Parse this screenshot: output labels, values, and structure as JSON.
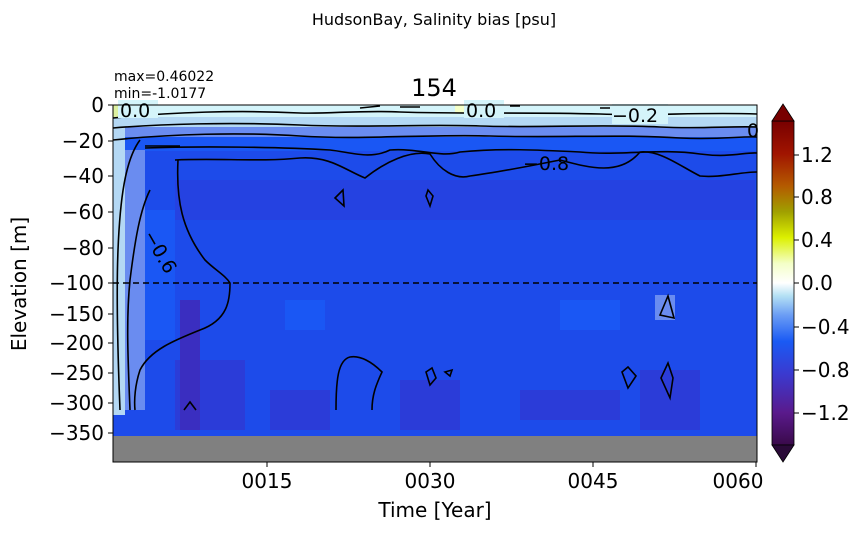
{
  "figure": {
    "suptitle": "HudsonBay, Salinity bias [psu]",
    "title": "154",
    "stat_max": "max=0.46022",
    "stat_min": "min=-1.0177"
  },
  "chart_data": {
    "type": "heatmap",
    "title": "154",
    "xlabel": "Time [Year]",
    "ylabel": "Elevation [m]",
    "x_ticks": [
      "0015",
      "0030",
      "0045",
      "0060"
    ],
    "y_ticks_upper": [
      "0",
      "−20",
      "−40",
      "−60",
      "−80",
      "−100"
    ],
    "y_ticks_lower": [
      "−150",
      "−200",
      "−250",
      "−300",
      "−350"
    ],
    "y_axis_note": "split y-axis: 0 to -100 m upper panel, -100 to -400 m lower panel, dashed line at -100",
    "colorbar_ticks": [
      "1.2",
      "0.8",
      "0.4",
      "0.0",
      "−0.4",
      "−0.8",
      "−1.2"
    ],
    "colorbar_range": [
      -1.5,
      1.5
    ],
    "contour_labels": [
      "0.0",
      "0.0",
      "−0.2",
      "−0.8",
      "−0.6",
      "0"
    ],
    "max": 0.46022,
    "min": -1.0177,
    "colors": {
      "bias_-1.0": "#2b3cd8",
      "bias_-0.9": "#1d4bea",
      "bias_-0.8": "#1a57f4",
      "bias_-0.6": "#6a8cf0",
      "bias_-0.4": "#b4d8f4",
      "bias_-0.2": "#d4f4fa",
      "bias_0.0": "#f2fffc",
      "land": "#808080"
    }
  }
}
